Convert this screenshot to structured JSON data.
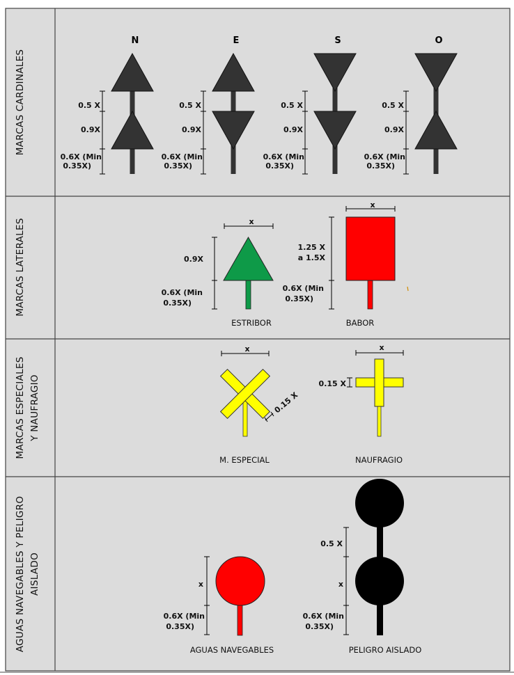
{
  "rows": {
    "cardinales": "MARCAS CARDINALES",
    "laterales": "MARCAS LATERALES",
    "especiales_1": "MARCAS ESPECIALES",
    "especiales_2": "Y NAUFRAGIO",
    "aguas_1": "AGUAS NAVEGABLES Y PELIGRO",
    "aguas_2": "AISLADO"
  },
  "cardinal": {
    "directions": [
      "N",
      "E",
      "S",
      "O"
    ],
    "dim_upper": "0.5 X",
    "dim_middle": "0.9X",
    "dim_lower_1": "0.6X (Min",
    "dim_lower_2": "0.35X)"
  },
  "lateral": {
    "estribor": {
      "caption": "ESTRIBOR",
      "width": "x",
      "height": "0.9X",
      "pole_1": "0.6X (Min",
      "pole_2": "0.35X)"
    },
    "babor": {
      "caption": "BABOR",
      "width": "x",
      "height_1": "1.25 X",
      "height_2": "a 1.5X",
      "pole_1": "0.6X (Min",
      "pole_2": "0.35X)"
    }
  },
  "especial": {
    "m_especial": {
      "caption": "M. ESPECIAL",
      "width": "x",
      "thickness": "0.15 X"
    },
    "naufragio": {
      "caption": "NAUFRAGIO",
      "width": "x",
      "thickness": "0.15 X"
    }
  },
  "aguas": {
    "navegables": {
      "caption": "AGUAS NAVEGABLES",
      "size": "x",
      "pole_1": "0.6X (Min",
      "pole_2": "0.35X)"
    },
    "peligro": {
      "caption": "PELIGRO AISLADO",
      "gap": "0.5 X",
      "size": "x",
      "pole_1": "0.6X (Min",
      "pole_2": "0.35X)"
    }
  },
  "colors": {
    "background": "#dcdcdc",
    "dark": "#333333",
    "green": "#0e9a48",
    "red": "#ff0000",
    "yellow": "#ffff00",
    "black": "#000000"
  }
}
